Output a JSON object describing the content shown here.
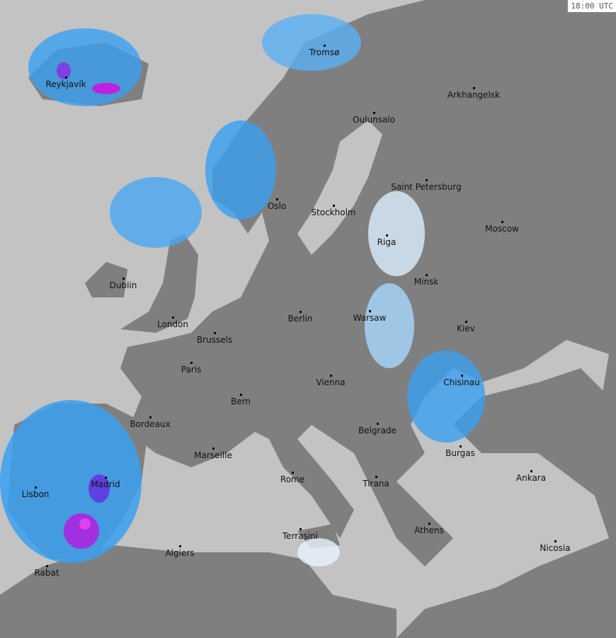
{
  "timestamp": "18:00 UTC",
  "colors": {
    "sea": "#c3c3c3",
    "land": "#7f7f7f",
    "light_precip": "#e8f4ff",
    "moderate_precip": "#3aa0f0",
    "heavy_precip": "#2060e0",
    "extreme_precip": "#c020e0"
  },
  "cities": [
    "Tromsø",
    "Reykjavík",
    "Arkhangelsk",
    "Oulunsalo",
    "Saint Petersburg",
    "Oslo",
    "Stockholm",
    "Moscow",
    "Riga",
    "Dublin",
    "Minsk",
    "London",
    "Berlin",
    "Warsaw",
    "Brussels",
    "Kiev",
    "Paris",
    "Vienna",
    "Chisinau",
    "Bern",
    "Bordeaux",
    "Belgrade",
    "Marseille",
    "Burgas",
    "Madrid",
    "Rome",
    "Tirana",
    "Ankara",
    "Lisbon",
    "Athens",
    "Terrasini",
    "Nicosia",
    "Algiers",
    "Rabat"
  ]
}
